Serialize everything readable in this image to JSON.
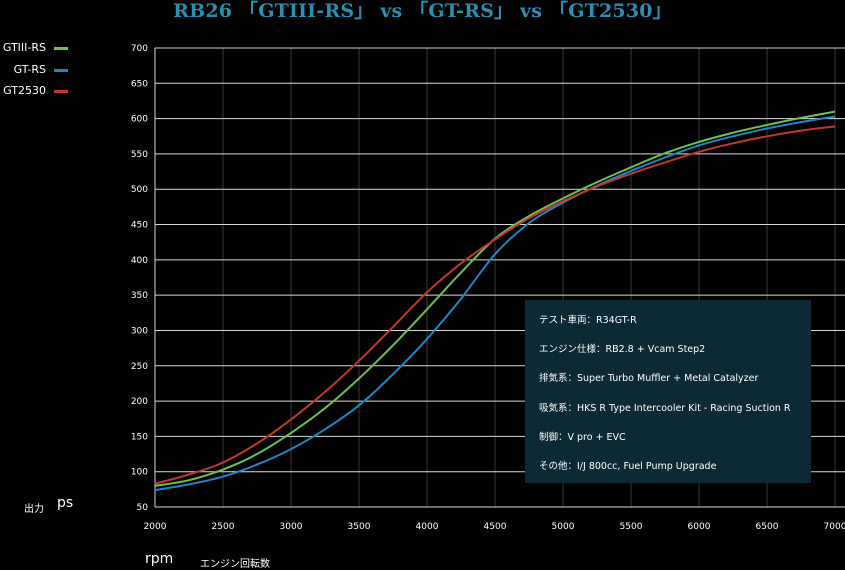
{
  "title": "RB26 「GTIII-RS」 vs 「GT-RS」 vs 「GT2530」",
  "legend": [
    {
      "label": "GTIII-RS",
      "color": "#6dbf56"
    },
    {
      "label": "GT-RS",
      "color": "#1f86c4"
    },
    {
      "label": "GT2530",
      "color": "#c0392b"
    }
  ],
  "axis": {
    "y_label_jp": "出力",
    "y_unit": "ps",
    "x_unit": "rpm",
    "x_label_jp": "エンジン回転数"
  },
  "specs": [
    "テスト車両：R34GT-R",
    "エンジン仕様：RB2.8 + Vcam Step2",
    "排気系：Super Turbo Muffler + Metal Catalyzer",
    "吸気系：HKS R Type Intercooler Kit - Racing Suction R",
    "制御：V pro + EVC",
    "その他：I/J 800cc, Fuel Pump Upgrade"
  ],
  "chart_data": {
    "type": "line",
    "title": "RB26 「GTIII-RS」 vs 「GT-RS」 vs 「GT2530」",
    "xlabel": "rpm",
    "ylabel": "ps",
    "xlim": [
      2000,
      7000
    ],
    "ylim": [
      50,
      700
    ],
    "x_ticks": [
      2000,
      2500,
      3000,
      3500,
      4000,
      4500,
      5000,
      5500,
      6000,
      6500,
      7000
    ],
    "y_ticks": [
      50,
      100,
      150,
      200,
      250,
      300,
      350,
      400,
      450,
      500,
      550,
      600,
      650,
      700
    ],
    "grid": true,
    "legend_position": "top-left",
    "series": [
      {
        "name": "GTIII-RS",
        "color": "#6dbf56",
        "x": [
          2000,
          2250,
          2500,
          2750,
          3000,
          3250,
          3500,
          3750,
          4000,
          4250,
          4500,
          4750,
          5000,
          5250,
          5500,
          5750,
          6000,
          6250,
          6500,
          6750,
          7000
        ],
        "y": [
          80,
          88,
          103,
          125,
          155,
          190,
          232,
          279,
          330,
          382,
          430,
          462,
          487,
          510,
          531,
          551,
          567,
          580,
          591,
          601,
          610
        ]
      },
      {
        "name": "GT-RS",
        "color": "#1f86c4",
        "x": [
          2000,
          2250,
          2500,
          2750,
          3000,
          3250,
          3500,
          3750,
          4000,
          4250,
          4500,
          4750,
          5000,
          5250,
          5500,
          5750,
          6000,
          6250,
          6500,
          6750,
          7000
        ],
        "y": [
          74,
          82,
          93,
          110,
          132,
          160,
          194,
          238,
          288,
          345,
          408,
          452,
          481,
          505,
          526,
          545,
          562,
          575,
          586,
          595,
          603
        ]
      },
      {
        "name": "GT2530",
        "color": "#c0392b",
        "x": [
          2000,
          2250,
          2500,
          2750,
          3000,
          3250,
          3500,
          3750,
          4000,
          4250,
          4500,
          4750,
          5000,
          5250,
          5500,
          5750,
          6000,
          6250,
          6500,
          6750,
          7000
        ],
        "y": [
          83,
          96,
          113,
          140,
          174,
          213,
          257,
          305,
          354,
          395,
          429,
          459,
          483,
          504,
          522,
          538,
          553,
          565,
          575,
          583,
          589
        ]
      }
    ]
  }
}
